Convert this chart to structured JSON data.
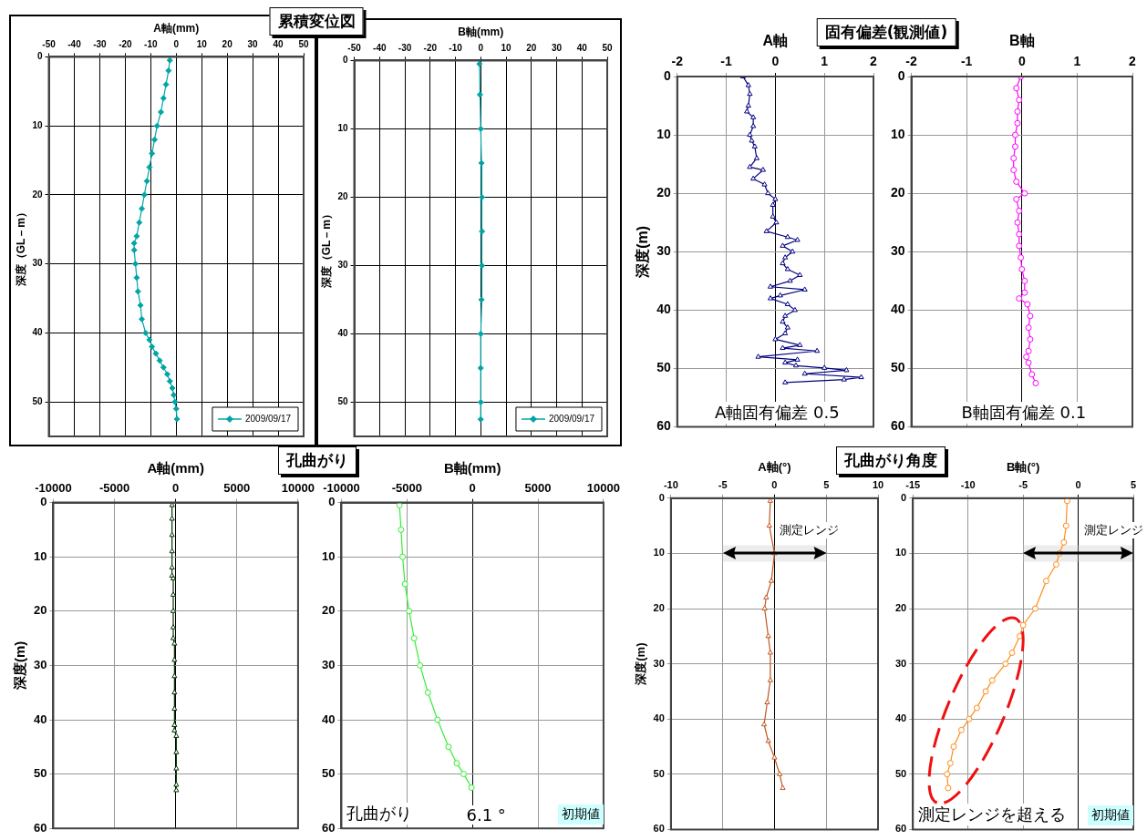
{
  "chart_data": [
    {
      "type": "line",
      "title": "累積変位図",
      "xlabel": "A軸(mm)",
      "ylabel": "深度（GL－m）",
      "xlim": [
        -50,
        50
      ],
      "xticks": [
        -50,
        -40,
        -30,
        -20,
        -10,
        0,
        10,
        20,
        30,
        40,
        50
      ],
      "ylim": [
        55,
        0
      ],
      "yticks": [
        0,
        10,
        20,
        30,
        40,
        50
      ],
      "grid": true,
      "marker": "diamond",
      "legend": "bottom right",
      "series": [
        {
          "name": "2009/09/17",
          "color": "#00a6a6",
          "x": [
            -2.5,
            -3,
            -4,
            -5,
            -6,
            -7.5,
            -8.5,
            -9.5,
            -10.5,
            -11.5,
            -12.5,
            -13.5,
            -14.5,
            -15.5,
            -16.5,
            -16.5,
            -16,
            -15.5,
            -15,
            -14,
            -13.5,
            -12,
            -10.5,
            -9.5,
            -8,
            -6.5,
            -5,
            -3.5,
            -2.5,
            -1.5,
            -1,
            -0.5,
            0,
            0.3
          ],
          "values": [
            0.5,
            2,
            4,
            6,
            8,
            10,
            12,
            14,
            16,
            18,
            20,
            22,
            24,
            26,
            27,
            28,
            30,
            32,
            34,
            36,
            38,
            40,
            41,
            42,
            43,
            44,
            45,
            46,
            47,
            48,
            49,
            50,
            51,
            52.5
          ]
        }
      ]
    },
    {
      "type": "line",
      "xlabel": "B軸(mm)",
      "ylabel": "深度（GL－m）",
      "xlim": [
        -50,
        50
      ],
      "xticks": [
        -50,
        -40,
        -30,
        -20,
        -10,
        0,
        10,
        20,
        30,
        40,
        50
      ],
      "ylim": [
        55,
        0
      ],
      "yticks": [
        0,
        10,
        20,
        30,
        40,
        50
      ],
      "grid": true,
      "marker": "diamond",
      "legend": "bottom right",
      "series": [
        {
          "name": "2009/09/17",
          "color": "#00a6a6",
          "x": [
            -0.5,
            -0.3,
            0,
            0.3,
            0.5,
            0.5,
            0.5,
            0.3,
            0,
            0,
            0,
            0
          ],
          "values": [
            0.5,
            5,
            10,
            15,
            20,
            25,
            30,
            35,
            40,
            45,
            50,
            52.5
          ]
        }
      ]
    },
    {
      "type": "line",
      "title": "固有偏差(観測値)",
      "xlabel": "A軸",
      "ylabel": "深度(m)",
      "xlim": [
        -2,
        2
      ],
      "xticks": [
        -2,
        -1,
        0,
        1,
        2
      ],
      "ylim": [
        60,
        0
      ],
      "yticks": [
        0,
        10,
        20,
        30,
        40,
        50,
        60
      ],
      "grid": true,
      "marker": "triangle",
      "annotations": [
        "A軸固有偏差 0.5"
      ],
      "series": [
        {
          "color": "#000080",
          "x": [
            -0.66,
            -0.55,
            -0.52,
            -0.55,
            -0.58,
            -0.45,
            -0.45,
            -0.52,
            -0.48,
            -0.42,
            -0.38,
            -0.52,
            -0.25,
            -0.45,
            -0.22,
            -0.15,
            0,
            -0.05,
            -0.05,
            0.02,
            -0.18,
            0.25,
            0.45,
            0.15,
            0.35,
            0.2,
            0.15,
            0.25,
            0.5,
            0.3,
            -0.1,
            0.6,
            0.1,
            -0.1,
            0.25,
            0.4,
            0.2,
            0.15,
            0.25,
            0.2,
            0,
            0.5,
            0.15,
            0.85,
            -0.35,
            0.45,
            0.2,
            0.42,
            1,
            1.45,
            0.6,
            1.75,
            1.4,
            0.2
          ],
          "values": [
            0,
            1.5,
            3,
            5,
            6,
            7,
            8.5,
            10,
            11,
            12,
            14,
            15.5,
            16,
            17.5,
            18.5,
            20,
            21,
            22,
            24,
            25,
            26.5,
            27.5,
            28,
            29,
            30,
            31,
            32,
            33,
            34,
            35,
            36,
            36.5,
            37.5,
            38,
            39,
            40,
            41,
            42,
            43,
            44,
            45,
            46,
            46.5,
            47,
            48,
            48.5,
            49,
            49.5,
            49.9,
            50.3,
            50.9,
            51.5,
            51.9,
            52.4
          ]
        }
      ]
    },
    {
      "type": "line",
      "xlabel": "B軸",
      "xlim": [
        -2,
        2
      ],
      "xticks": [
        -2,
        -1,
        0,
        1,
        2
      ],
      "ylim": [
        60,
        0
      ],
      "yticks": [
        0,
        10,
        20,
        30,
        40,
        50,
        60
      ],
      "grid": true,
      "marker": "circle",
      "annotations": [
        "B軸固有偏差 0.1"
      ],
      "series": [
        {
          "color": "#ff00ff",
          "x": [
            -0.02,
            -0.1,
            -0.05,
            -0.08,
            -0.08,
            -0.12,
            -0.12,
            -0.15,
            -0.15,
            -0.1,
            0.05,
            -0.1,
            -0.05,
            -0.08,
            -0.05,
            -0.05,
            -0.02,
            0,
            0.05,
            0.05,
            -0.05,
            0.1,
            0.15,
            0.12,
            0.15,
            0.12,
            0.08,
            0.12,
            0.18,
            0.25
          ],
          "values": [
            0,
            2,
            4,
            6,
            8,
            10,
            12,
            14,
            16,
            18,
            20,
            21,
            23,
            25,
            27,
            29,
            31,
            33,
            35,
            37,
            38,
            39,
            41,
            43,
            45,
            47,
            48,
            49,
            51,
            52.5
          ]
        }
      ]
    },
    {
      "type": "line",
      "title": "孔曲がり",
      "xlabel": "A軸(mm)",
      "ylabel": "深度(m)",
      "xlim": [
        -10000,
        10000
      ],
      "xticks": [
        -10000,
        -5000,
        0,
        5000,
        10000
      ],
      "ylim": [
        60,
        0
      ],
      "yticks": [
        0,
        10,
        20,
        30,
        40,
        50,
        60
      ],
      "grid": true,
      "marker": "triangle",
      "series": [
        {
          "color": "#003300",
          "x": [
            -300,
            -300,
            -300,
            -300,
            -300,
            -300,
            -200,
            -200,
            -200,
            -200,
            -200,
            -100,
            -100,
            -100,
            -100,
            -100,
            -100,
            -100,
            50,
            50,
            50,
            50,
            50
          ],
          "values": [
            0.5,
            3,
            6,
            9,
            12,
            13.5,
            14,
            17,
            20,
            23,
            25,
            26,
            29,
            32,
            35,
            38,
            41,
            42,
            43,
            46,
            49,
            52,
            53
          ]
        }
      ]
    },
    {
      "type": "line",
      "xlabel": "B軸(mm)",
      "xlim": [
        -10000,
        10000
      ],
      "xticks": [
        -10000,
        -5000,
        0,
        5000,
        10000
      ],
      "ylim": [
        60,
        0
      ],
      "yticks": [
        0,
        10,
        20,
        30,
        40,
        50,
        60
      ],
      "grid": true,
      "marker": "circle",
      "annotations": [
        "孔曲がり",
        "6.1 °",
        "初期値"
      ],
      "series": [
        {
          "color": "#33ee33",
          "x": [
            -5570,
            -5450,
            -5330,
            -5150,
            -4830,
            -4450,
            -4000,
            -3400,
            -2670,
            -1830,
            -1200,
            -670,
            -70
          ],
          "values": [
            0.5,
            5,
            10,
            15,
            20,
            25,
            30,
            35,
            40,
            45,
            48,
            50,
            52.5
          ]
        }
      ]
    },
    {
      "type": "line",
      "title": "孔曲がり角度",
      "xlabel": "A軸(°)",
      "ylabel": "深度(m)",
      "xlim": [
        -10,
        10
      ],
      "xticks": [
        -10,
        -5,
        0,
        5,
        10
      ],
      "ylim": [
        60,
        0
      ],
      "yticks": [
        0,
        10,
        20,
        30,
        40,
        50,
        60
      ],
      "grid": true,
      "marker": "triangle",
      "bands": [
        {
          "axis": "x",
          "from": -5,
          "to": 5,
          "label": "測定レンジ"
        }
      ],
      "series": [
        {
          "color": "#c0561a",
          "x": [
            -0.4,
            -0.5,
            0,
            -0.3,
            -0.8,
            -0.95,
            -0.6,
            -0.4,
            -0.4,
            -0.7,
            -1,
            -0.6,
            0,
            0.5,
            0.8
          ],
          "values": [
            0.5,
            5,
            10,
            15,
            18,
            20,
            25,
            28,
            33,
            37,
            41,
            44,
            47,
            50,
            52.5
          ]
        }
      ]
    },
    {
      "type": "line",
      "xlabel": "B軸(°)",
      "xlim": [
        -15,
        5
      ],
      "xticks": [
        -15,
        -10,
        -5,
        0,
        5
      ],
      "ylim": [
        60,
        0
      ],
      "yticks": [
        0,
        10,
        20,
        30,
        40,
        50,
        60
      ],
      "grid": true,
      "marker": "circle",
      "bands": [
        {
          "axis": "x",
          "from": -5,
          "to": 5,
          "label": "測定レンジ"
        }
      ],
      "annotations": [
        "測定レンジを超える",
        "初期値"
      ],
      "series": [
        {
          "color": "#ff8c1a",
          "x": [
            -1,
            -1.1,
            -1.3,
            -1.7,
            -2,
            -2.9,
            -3.9,
            -5,
            -5.3,
            -6,
            -6.6,
            -7.8,
            -8.4,
            -9.2,
            -9.9,
            -10.6,
            -11.3,
            -11.6,
            -11.9,
            -11.8
          ],
          "values": [
            0.5,
            5,
            8,
            10,
            12,
            15,
            20,
            23,
            25,
            28,
            30,
            33,
            35,
            38,
            40,
            42,
            45,
            48,
            50,
            52.5
          ]
        }
      ]
    }
  ]
}
